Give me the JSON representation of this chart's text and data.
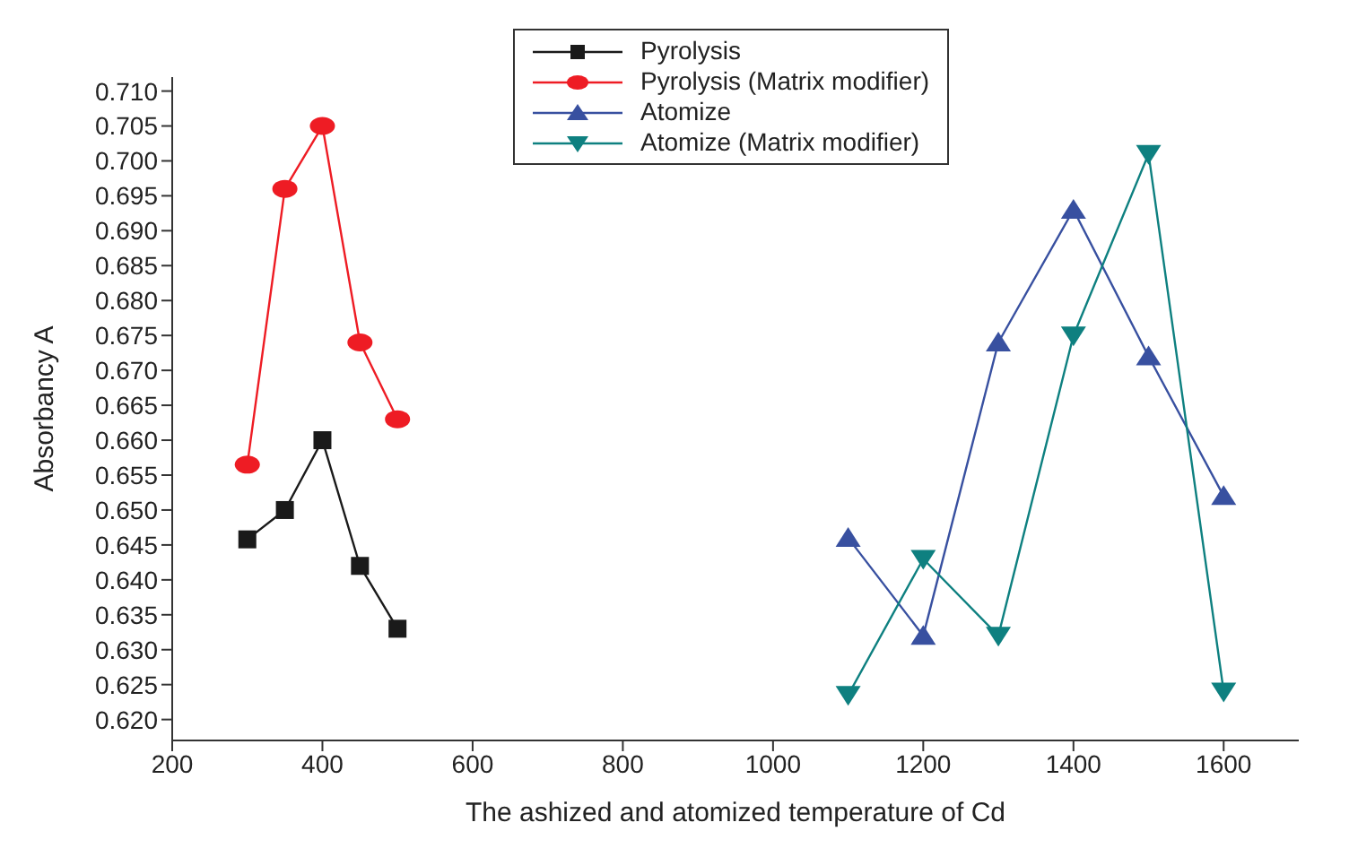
{
  "chart_data": {
    "type": "line",
    "xlabel": "The ashized and atomized temperature of Cd",
    "ylabel": "Absorbancy A",
    "xlim": [
      200,
      1700
    ],
    "xticks": [
      200,
      400,
      600,
      800,
      1000,
      1200,
      1400,
      1600
    ],
    "ylim": [
      0.617,
      0.712
    ],
    "yticks": [
      {
        "value": 0.62,
        "label": "0.620"
      },
      {
        "value": 0.625,
        "label": "0.625"
      },
      {
        "value": 0.63,
        "label": "0.630"
      },
      {
        "value": 0.635,
        "label": "0.635"
      },
      {
        "value": 0.64,
        "label": "0.640"
      },
      {
        "value": 0.645,
        "label": "0.645"
      },
      {
        "value": 0.65,
        "label": "0.650"
      },
      {
        "value": 0.655,
        "label": "0.655"
      },
      {
        "value": 0.66,
        "label": "0.660"
      },
      {
        "value": 0.665,
        "label": "0.665"
      },
      {
        "value": 0.67,
        "label": "0.670"
      },
      {
        "value": 0.675,
        "label": "0.675"
      },
      {
        "value": 0.68,
        "label": "0.680"
      },
      {
        "value": 0.685,
        "label": "0.685"
      },
      {
        "value": 0.69,
        "label": "0.690"
      },
      {
        "value": 0.695,
        "label": "0.695"
      },
      {
        "value": 0.7,
        "label": "0.700"
      },
      {
        "value": 0.705,
        "label": "0.705"
      },
      {
        "value": 0.71,
        "label": "0.710"
      }
    ],
    "grid": false,
    "legend": "top",
    "line_style": "solid",
    "series": [
      {
        "name": "Pyrolysis",
        "color": "#1a1a1a",
        "marker": "square",
        "x": [
          300,
          350,
          400,
          450,
          500
        ],
        "values": [
          0.6458,
          0.65,
          0.66,
          0.642,
          0.633
        ]
      },
      {
        "name": "Pyrolysis (Matrix modifier)",
        "color": "#ee1c24",
        "marker": "circle",
        "x": [
          300,
          350,
          400,
          450,
          500
        ],
        "values": [
          0.6565,
          0.696,
          0.705,
          0.674,
          0.663
        ]
      },
      {
        "name": "Atomize",
        "color": "#3850a0",
        "marker": "triangle",
        "x": [
          1100,
          1200,
          1300,
          1400,
          1500,
          1600
        ],
        "values": [
          0.646,
          0.632,
          0.674,
          0.693,
          0.672,
          0.652
        ]
      },
      {
        "name": "Atomize (Matrix modifier)",
        "color": "#0e8080",
        "marker": "triangle-down",
        "x": [
          1100,
          1200,
          1300,
          1400,
          1500,
          1600
        ],
        "values": [
          0.6235,
          0.643,
          0.632,
          0.675,
          0.701,
          0.624
        ]
      }
    ]
  }
}
